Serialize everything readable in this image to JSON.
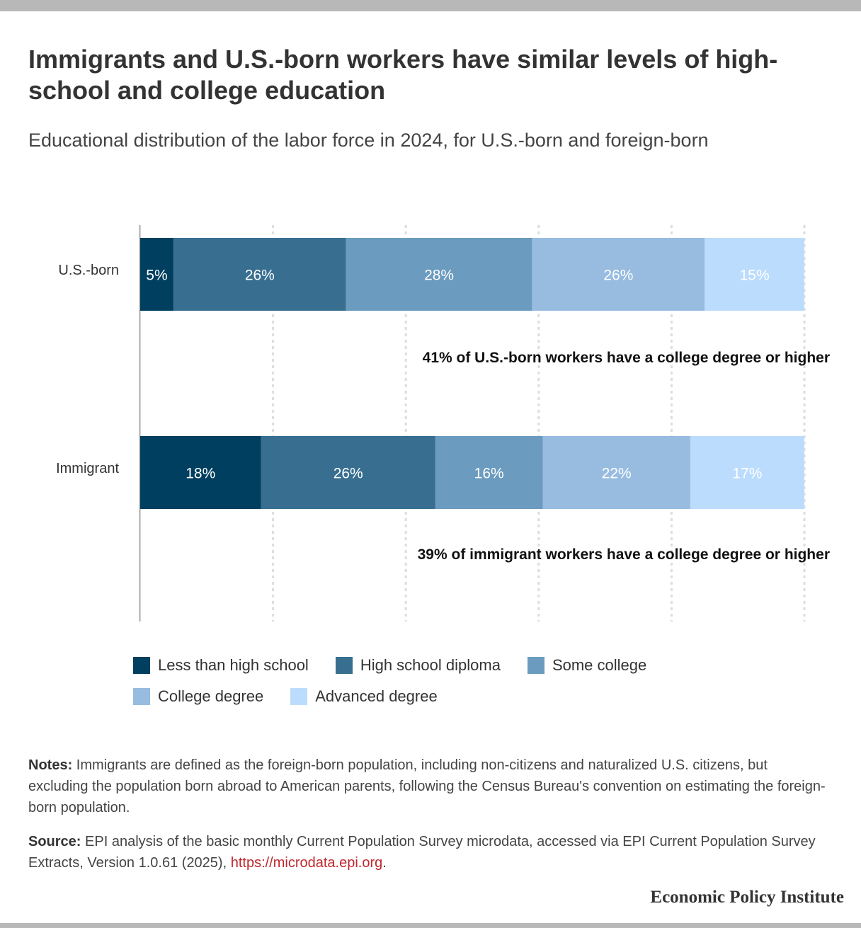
{
  "title": "Immigrants and U.S.-born workers have similar levels of high-school and college education",
  "subtitle": "Educational distribution of the labor force in 2024, for U.S.-born and foreign-born",
  "chart_data": {
    "type": "bar",
    "orientation": "horizontal",
    "stacked": true,
    "categories": [
      "U.S.-born",
      "Immigrant"
    ],
    "series": [
      {
        "name": "Less than high school",
        "values": [
          5,
          18
        ],
        "labels": [
          "5%",
          "18%"
        ],
        "color": "#003f5f"
      },
      {
        "name": "High school diploma",
        "values": [
          26,
          26
        ],
        "labels": [
          "26%",
          "26%"
        ],
        "color": "#386f91"
      },
      {
        "name": "Some college",
        "values": [
          28,
          16
        ],
        "labels": [
          "28%",
          "16%"
        ],
        "color": "#6b9bbe"
      },
      {
        "name": "College degree",
        "values": [
          26,
          22
        ],
        "labels": [
          "26%",
          "22%"
        ],
        "color": "#97bce0"
      },
      {
        "name": "Advanced degree",
        "values": [
          15,
          17
        ],
        "labels": [
          "15%",
          "17%"
        ],
        "color": "#bcdcfd"
      }
    ],
    "annotations": [
      "41% of U.S.-born workers have a college degree or higher",
      "39% of immigrant workers have a college degree or higher"
    ],
    "xlim": [
      0,
      100
    ],
    "grid": true,
    "legend_position": "bottom"
  },
  "notes": {
    "label": "Notes:",
    "text": " Immigrants are defined as the foreign-born population, including non-citizens and naturalized U.S. citizens, but excluding the population born abroad to American parents, following the Census Bureau's convention on estimating the foreign-born population."
  },
  "source": {
    "label": "Source:",
    "text": " EPI analysis of the basic monthly Current Population Survey microdata, accessed via EPI Current Population Survey Extracts, Version 1.0.61 (2025), ",
    "link": "https://microdata.epi.org",
    "end": "."
  },
  "brand": "Economic Policy Institute"
}
